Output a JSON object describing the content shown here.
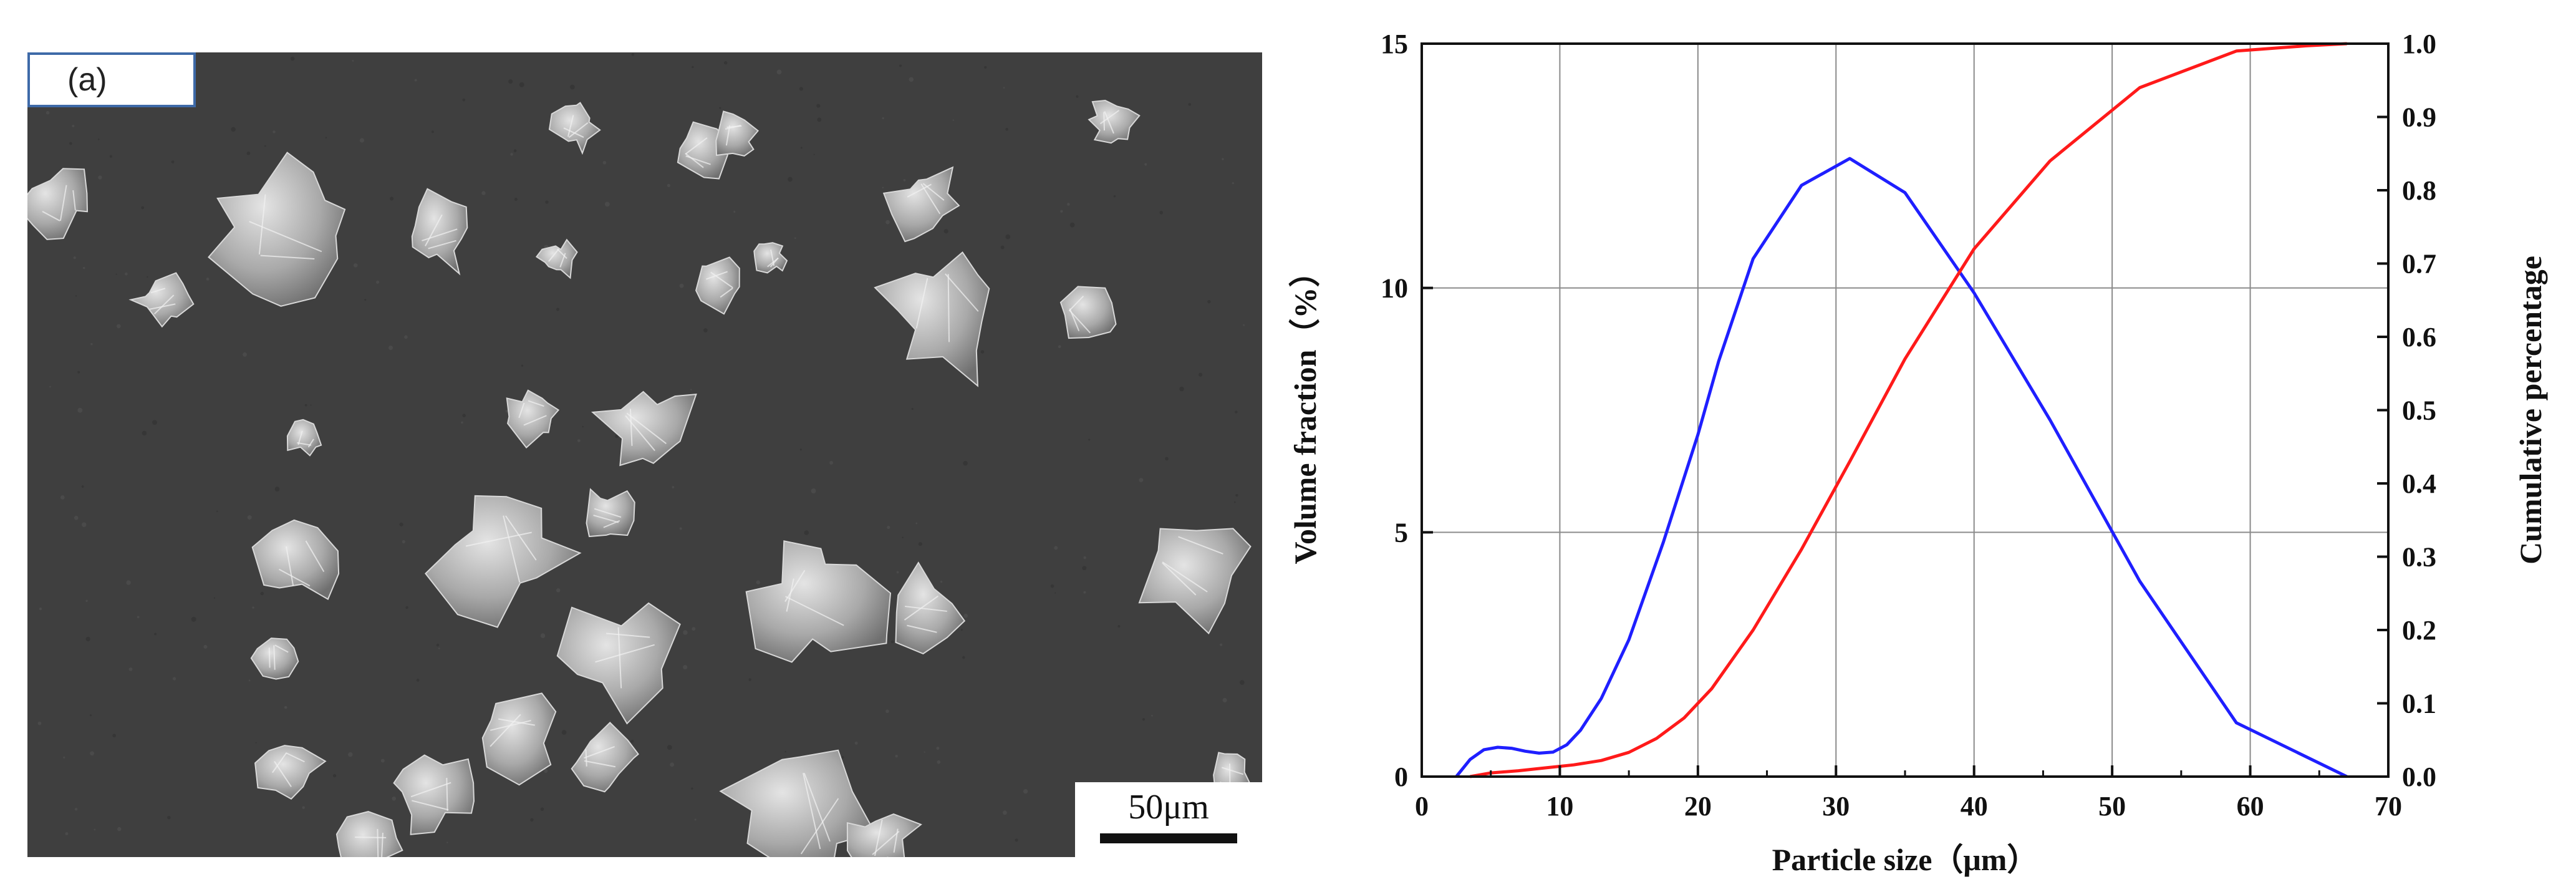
{
  "sem_panel": {
    "label": "(a)",
    "scale_bar_label": "50μm"
  },
  "chart_data": {
    "type": "line",
    "xlabel": "Particle size（μm）",
    "ylabel_left": "Volume fraction（%）",
    "ylabel_right": "Cumulative percentage",
    "xlim": [
      0,
      70
    ],
    "ylim_left": [
      0,
      15
    ],
    "ylim_right": [
      0,
      1.0
    ],
    "x_ticks": [
      0,
      10,
      20,
      30,
      40,
      50,
      60,
      70
    ],
    "y_left_ticks": [
      0,
      5,
      10,
      15
    ],
    "y_right_ticks": [
      "0.0",
      "0.1",
      "0.2",
      "0.3",
      "0.4",
      "0.5",
      "0.6",
      "0.7",
      "0.8",
      "0.9",
      "1.0"
    ],
    "grid": true,
    "series": [
      {
        "axis": "left",
        "color": "#1f1fff",
        "x": [
          2.5,
          3.5,
          4.5,
          5.5,
          6.5,
          7.5,
          8.5,
          9.5,
          10.5,
          11.5,
          13,
          15,
          17.5,
          20,
          21.5,
          24,
          27.5,
          31,
          35,
          40,
          45.5,
          52,
          59,
          67
        ],
        "y": [
          0,
          0.35,
          0.55,
          0.6,
          0.58,
          0.52,
          0.48,
          0.5,
          0.65,
          0.95,
          1.6,
          2.8,
          4.8,
          7.0,
          8.5,
          10.6,
          12.1,
          12.65,
          11.95,
          9.9,
          7.3,
          4.0,
          1.1,
          0
        ]
      },
      {
        "axis": "right",
        "color": "#ff1a1a",
        "x": [
          3.5,
          5,
          7,
          9,
          11,
          13,
          15,
          17,
          19,
          21,
          24,
          27.5,
          31,
          35,
          40,
          45.5,
          52,
          59,
          64,
          67
        ],
        "y": [
          0,
          0.005,
          0.008,
          0.012,
          0.016,
          0.022,
          0.033,
          0.052,
          0.08,
          0.12,
          0.2,
          0.31,
          0.43,
          0.57,
          0.72,
          0.84,
          0.94,
          0.99,
          0.997,
          1.0
        ]
      }
    ]
  }
}
